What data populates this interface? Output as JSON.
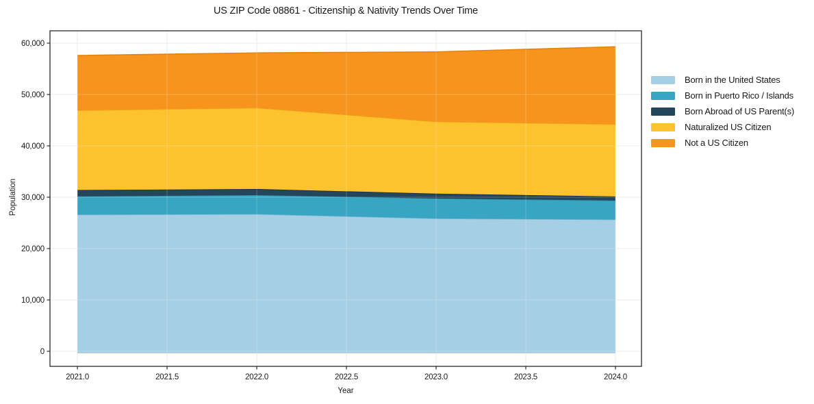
{
  "title": "US ZIP Code 08861 - Citizenship & Nativity Trends Over Time",
  "axes": {
    "xlabel": "Year",
    "ylabel": "Population"
  },
  "colors": {
    "background": "#ffffff",
    "gridline": "#e6e6e6",
    "grid_overlay": "rgba(255,255,255,0.22)",
    "spine": "#2a2a2a",
    "text": "#1a1a1a"
  },
  "chart_data": {
    "type": "area",
    "stacked": true,
    "title": "US ZIP Code 08861 - Citizenship & Nativity Trends Over Time",
    "xlabel": "Year",
    "ylabel": "Population",
    "grid": true,
    "legend_position": "right of plot, no frame",
    "x": [
      2021,
      2022,
      2023,
      2024
    ],
    "xlim": [
      2020.847,
      2024.145
    ],
    "ylim": [
      -2933,
      62400
    ],
    "x_ticks": [
      2021.0,
      2021.5,
      2022.0,
      2022.5,
      2023.0,
      2023.5,
      2024.0
    ],
    "x_tick_labels": [
      "2021.0",
      "2021.5",
      "2022.0",
      "2022.5",
      "2023.0",
      "2023.5",
      "2024.0"
    ],
    "y_ticks": [
      0,
      10000,
      20000,
      30000,
      40000,
      50000,
      60000
    ],
    "y_tick_labels": [
      "0",
      "10,000",
      "20,000",
      "30,000",
      "40,000",
      "50,000",
      "60,000"
    ],
    "series": [
      {
        "name": "Born in the United States",
        "values": [
          26600,
          26700,
          25850,
          25650
        ],
        "color": "#a6cfe5",
        "edge_color": "#7eb6d4"
      },
      {
        "name": "Born in Puerto Rico / Islands",
        "values": [
          3550,
          3700,
          3900,
          3700
        ],
        "color": "#38a6c2",
        "edge_color": "#2a90ab"
      },
      {
        "name": "Born Abroad of US Parent(s)",
        "values": [
          1250,
          1200,
          950,
          800
        ],
        "color": "#24465a",
        "edge_color": "#122c3d"
      },
      {
        "name": "Naturalized US Citizen",
        "values": [
          15500,
          15800,
          14000,
          14050
        ],
        "color": "#fdc32e",
        "edge_color": "#eeab14"
      },
      {
        "name": "Not a US Citizen",
        "values": [
          10700,
          10700,
          13600,
          15100
        ],
        "color": "#f7941e",
        "edge_color": "#e2830f"
      }
    ],
    "cumulative_totals_by_year": [
      57600,
      58100,
      58300,
      59300
    ]
  }
}
